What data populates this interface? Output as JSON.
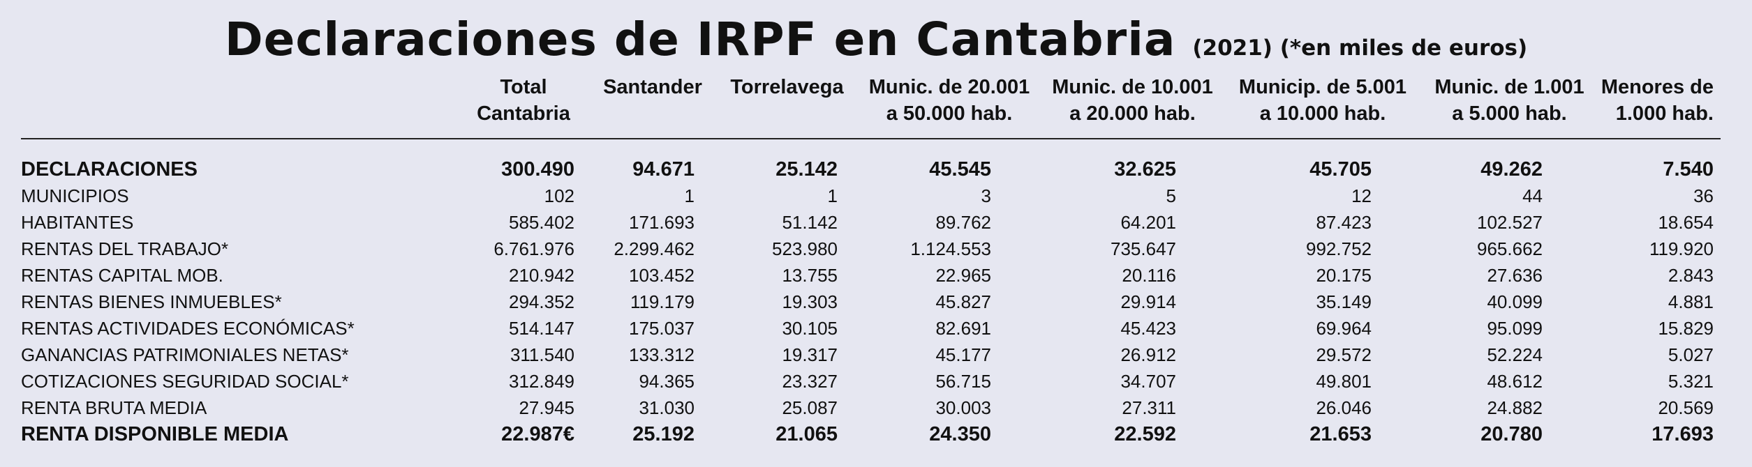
{
  "header": {
    "title": "Declaraciones de IRPF en Cantabria",
    "subtitle": "(2021) (*en miles de euros)"
  },
  "table": {
    "columns": [
      "Total\nCantabria",
      "Santander",
      "Torrelavega",
      "Munic. de 20.001\na 50.000 hab.",
      "Munic. de 10.001\na 20.000 hab.",
      "Municip. de 5.001\na 10.000 hab.",
      "Munic. de 1.001\na 5.000 hab.",
      "Menores de\n1.000 hab."
    ],
    "rows": [
      {
        "label": "DECLARACIONES",
        "bold": true,
        "values": [
          "300.490",
          "94.671",
          "25.142",
          "45.545",
          "32.625",
          "45.705",
          "49.262",
          "7.540"
        ]
      },
      {
        "label": "MUNICIPIOS",
        "bold": false,
        "values": [
          "102",
          "1",
          "1",
          "3",
          "5",
          "12",
          "44",
          "36"
        ]
      },
      {
        "label": "HABITANTES",
        "bold": false,
        "values": [
          "585.402",
          "171.693",
          "51.142",
          "89.762",
          "64.201",
          "87.423",
          "102.527",
          "18.654"
        ]
      },
      {
        "label": "RENTAS DEL TRABAJO*",
        "bold": false,
        "values": [
          "6.761.976",
          "2.299.462",
          "523.980",
          "1.124.553",
          "735.647",
          "992.752",
          "965.662",
          "119.920"
        ]
      },
      {
        "label": "RENTAS CAPITAL MOB.",
        "bold": false,
        "values": [
          "210.942",
          "103.452",
          "13.755",
          "22.965",
          "20.116",
          "20.175",
          "27.636",
          "2.843"
        ]
      },
      {
        "label": "RENTAS BIENES INMUEBLES*",
        "bold": false,
        "values": [
          "294.352",
          "119.179",
          "19.303",
          "45.827",
          "29.914",
          "35.149",
          "40.099",
          "4.881"
        ]
      },
      {
        "label": "RENTAS ACTIVIDADES ECONÓMICAS*",
        "bold": false,
        "values": [
          "514.147",
          "175.037",
          "30.105",
          "82.691",
          "45.423",
          "69.964",
          "95.099",
          "15.829"
        ]
      },
      {
        "label": "GANANCIAS PATRIMONIALES NETAS*",
        "bold": false,
        "values": [
          "311.540",
          "133.312",
          "19.317",
          "45.177",
          "26.912",
          "29.572",
          "52.224",
          "5.027"
        ]
      },
      {
        "label": "COTIZACIONES SEGURIDAD SOCIAL*",
        "bold": false,
        "values": [
          "312.849",
          "94.365",
          "23.327",
          "56.715",
          "34.707",
          "49.801",
          "48.612",
          "5.321"
        ]
      },
      {
        "label": "RENTA BRUTA MEDIA",
        "bold": false,
        "values": [
          "27.945",
          "31.030",
          "25.087",
          "30.003",
          "27.311",
          "26.046",
          "24.882",
          "20.569"
        ]
      },
      {
        "label": "RENTA DISPONIBLE MEDIA",
        "bold": true,
        "values": [
          "22.987€",
          "25.192",
          "21.065",
          "24.350",
          "22.592",
          "21.653",
          "20.780",
          "17.693"
        ]
      }
    ]
  }
}
